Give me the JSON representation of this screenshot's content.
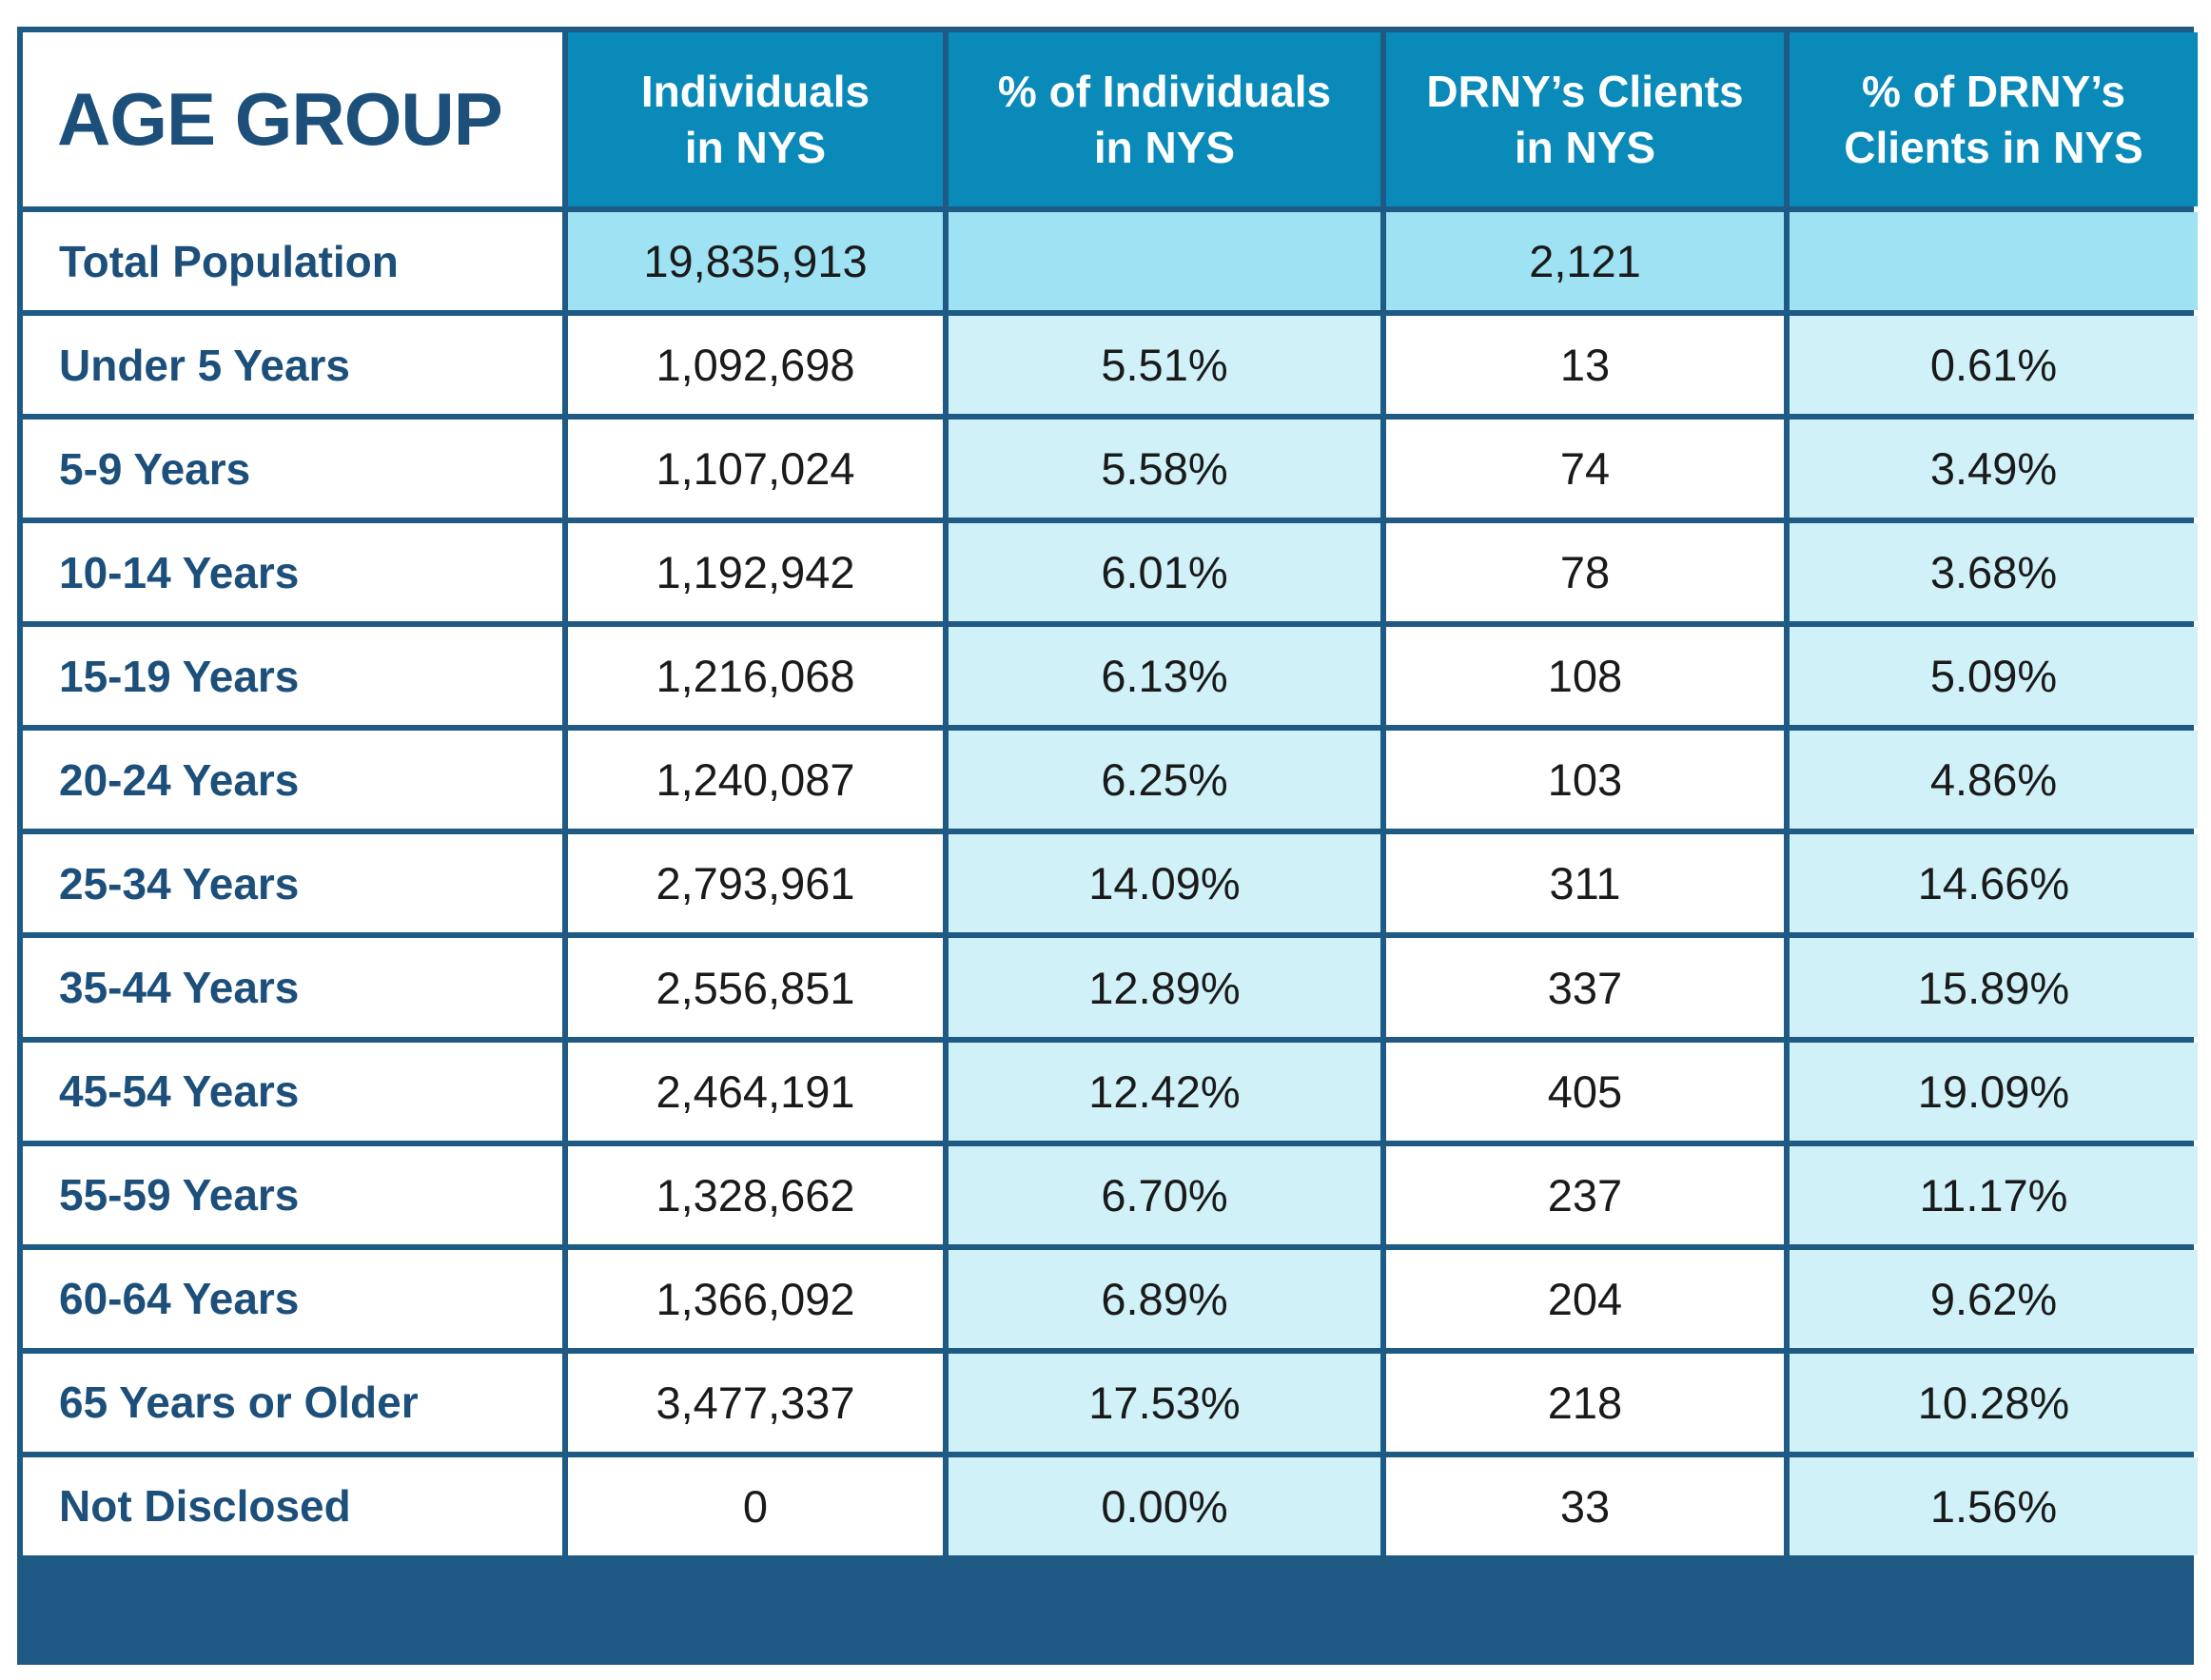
{
  "table": {
    "corner_label": "AGE GROUP",
    "headers": [
      [
        "Individuals",
        "in NYS"
      ],
      [
        "% of Individuals",
        "in NYS"
      ],
      [
        "DRNY’s Clients",
        "in NYS"
      ],
      [
        "% of DRNY’s",
        "Clients in NYS"
      ]
    ],
    "rows": [
      {
        "label": "Total Population",
        "individuals": "19,835,913",
        "pct_individuals": "",
        "clients": "2,121",
        "pct_clients": ""
      },
      {
        "label": "Under 5 Years",
        "individuals": "1,092,698",
        "pct_individuals": "5.51%",
        "clients": "13",
        "pct_clients": "0.61%"
      },
      {
        "label": "5-9 Years",
        "individuals": "1,107,024",
        "pct_individuals": "5.58%",
        "clients": "74",
        "pct_clients": "3.49%"
      },
      {
        "label": "10-14 Years",
        "individuals": "1,192,942",
        "pct_individuals": "6.01%",
        "clients": "78",
        "pct_clients": "3.68%"
      },
      {
        "label": "15-19 Years",
        "individuals": "1,216,068",
        "pct_individuals": "6.13%",
        "clients": "108",
        "pct_clients": "5.09%"
      },
      {
        "label": "20-24 Years",
        "individuals": "1,240,087",
        "pct_individuals": "6.25%",
        "clients": "103",
        "pct_clients": "4.86%"
      },
      {
        "label": "25-34 Years",
        "individuals": "2,793,961",
        "pct_individuals": "14.09%",
        "clients": "311",
        "pct_clients": "14.66%"
      },
      {
        "label": "35-44 Years",
        "individuals": "2,556,851",
        "pct_individuals": "12.89%",
        "clients": "337",
        "pct_clients": "15.89%"
      },
      {
        "label": "45-54 Years",
        "individuals": "2,464,191",
        "pct_individuals": "12.42%",
        "clients": "405",
        "pct_clients": "19.09%"
      },
      {
        "label": "55-59 Years",
        "individuals": "1,328,662",
        "pct_individuals": "6.70%",
        "clients": "237",
        "pct_clients": "11.17%"
      },
      {
        "label": "60-64 Years",
        "individuals": "1,366,092",
        "pct_individuals": "6.89%",
        "clients": "204",
        "pct_clients": "9.62%"
      },
      {
        "label": "65 Years or Older",
        "individuals": "3,477,337",
        "pct_individuals": "17.53%",
        "clients": "218",
        "pct_clients": "10.28%"
      },
      {
        "label": "Not Disclosed",
        "individuals": "0",
        "pct_individuals": "0.00%",
        "clients": "33",
        "pct_clients": "1.56%"
      }
    ]
  },
  "colors": {
    "border": "#1e5a84",
    "header_bg": "#0a8ab9",
    "label_text": "#1d4f7b",
    "total_row_bg": "#9ee2f4",
    "percent_col_bg": "#cff1f7"
  }
}
